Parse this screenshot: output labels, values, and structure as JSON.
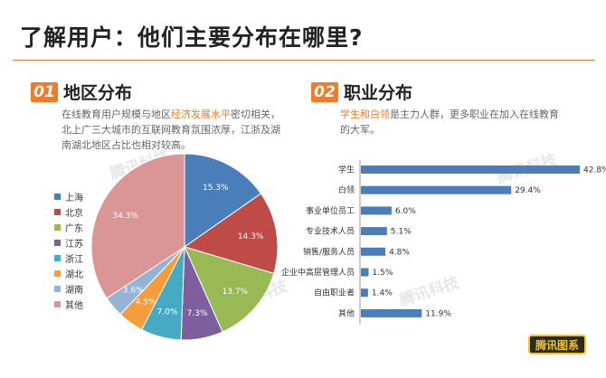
{
  "page_title": "了解用户：他们主要分布在哪里?",
  "left_section": {
    "number": "01",
    "title": "地区分布",
    "desc_line1_before": "在线教育用户规模与地区",
    "desc_line1_highlight": "经济发展水平",
    "desc_line1_after": "密切相关，",
    "desc_line2": "北上广三大城市的互联网教育氛围浓厚，江浙及湖",
    "desc_line3": "南湖北地区占比也相对较高。"
  },
  "right_section": {
    "number": "02",
    "title": "职业分布",
    "desc_line1_highlight": "学生和白领",
    "desc_line1_after": "是主力人群，更多职业在加入在线教育",
    "desc_line2": "的大军。"
  },
  "watermark_text": "腾讯科技",
  "logo_text": "腾讯图系",
  "chart_data": [
    {
      "type": "pie",
      "title": "",
      "legend_position": "left",
      "slices": [
        {
          "label": "上海",
          "value": 15.3,
          "display": "15.3%",
          "color": "#4a7ebb"
        },
        {
          "label": "北京",
          "value": 14.3,
          "display": "14.3%",
          "color": "#be4b48"
        },
        {
          "label": "广东",
          "value": 13.7,
          "display": "13.7%",
          "color": "#98b954"
        },
        {
          "label": "江苏",
          "value": 7.3,
          "display": "7.3%",
          "color": "#7d5fa0"
        },
        {
          "label": "浙江",
          "value": 7.0,
          "display": "7.0%",
          "color": "#46aac5"
        },
        {
          "label": "湖北",
          "value": 4.5,
          "display": "4.5%",
          "color": "#f59c3c"
        },
        {
          "label": "湖南",
          "value": 3.6,
          "display": "3.6%",
          "color": "#95b3d7"
        },
        {
          "label": "其他",
          "value": 34.3,
          "display": "34.3%",
          "color": "#d99694"
        }
      ]
    },
    {
      "type": "bar",
      "orientation": "horizontal",
      "title": "",
      "color": "#4a7ebb",
      "categories": [
        "学生",
        "白领",
        "事业单位员工",
        "专业技术人员",
        "销售/服务人员",
        "企业中高层管理人员",
        "自由职业者",
        "其他"
      ],
      "values": [
        42.8,
        29.4,
        6.0,
        5.1,
        4.8,
        1.5,
        1.4,
        11.9
      ],
      "labels": [
        "42.8%",
        "29.4%",
        "6.0%",
        "5.1%",
        "4.8%",
        "1.5%",
        "1.4%",
        "11.9%"
      ],
      "xlim": [
        0,
        42.8
      ]
    }
  ]
}
